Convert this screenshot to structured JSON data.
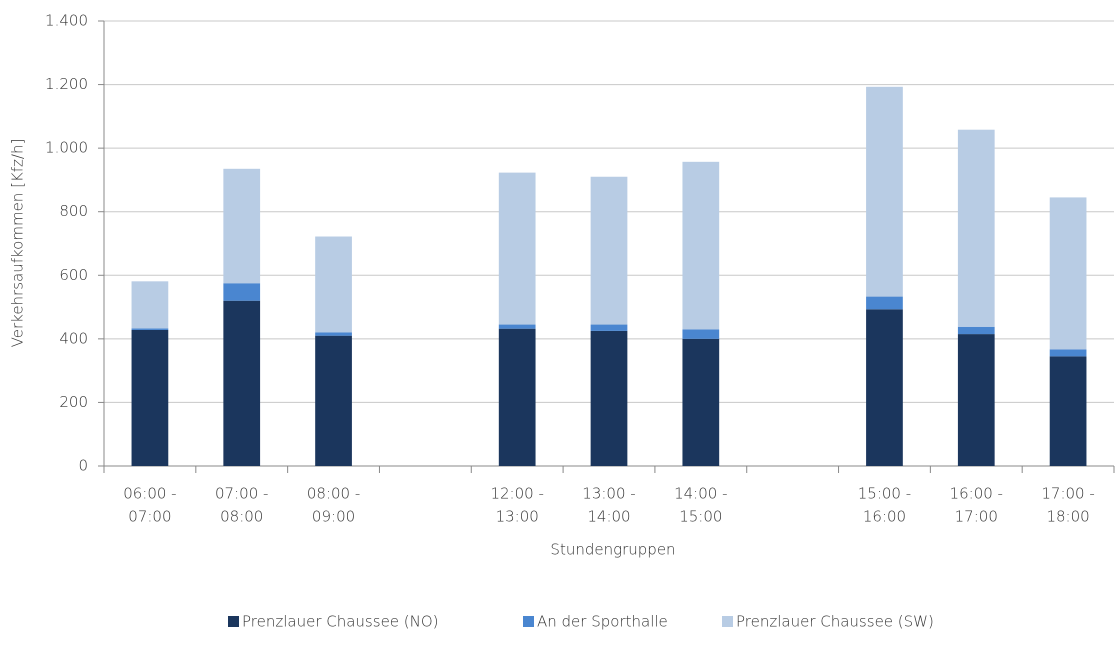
{
  "chart_data": {
    "type": "stacked_bar",
    "x_label": "Stundengruppen",
    "y_label": "Verkehrsaufkommen [Kfz/h]",
    "categories": [
      [
        "06:00 -",
        "07:00"
      ],
      [
        "07:00 -",
        "08:00"
      ],
      [
        "08:00 -",
        "09:00"
      ],
      null,
      [
        "12:00 -",
        "13:00"
      ],
      [
        "13:00 -",
        "14:00"
      ],
      [
        "14:00 -",
        "15:00"
      ],
      null,
      [
        "15:00 -",
        "16:00"
      ],
      [
        "16:00 -",
        "17:00"
      ],
      [
        "17:00 -",
        "18:00"
      ]
    ],
    "series": [
      {
        "name": "Prenzlauer Chaussee (NO)",
        "color": "#1b365d",
        "values": [
          428,
          520,
          410,
          null,
          432,
          425,
          400,
          null,
          493,
          415,
          345
        ]
      },
      {
        "name": "An der Sporthalle",
        "color": "#4a86d0",
        "values": [
          5,
          55,
          10,
          null,
          13,
          20,
          30,
          null,
          40,
          23,
          22
        ]
      },
      {
        "name": "Prenzlauer Chaussee (SW)",
        "color": "#b8cce4",
        "values": [
          148,
          360,
          302,
          null,
          478,
          465,
          527,
          null,
          660,
          620,
          478
        ]
      }
    ],
    "ylim": [
      0,
      1400
    ],
    "yticks": [
      0,
      200,
      400,
      600,
      800,
      {
        "value": 1000,
        "label": "1.000"
      },
      {
        "value": 1200,
        "label": "1.200"
      },
      {
        "value": 1400,
        "label": "1.400"
      }
    ],
    "grid": true,
    "legend": "bottom"
  }
}
